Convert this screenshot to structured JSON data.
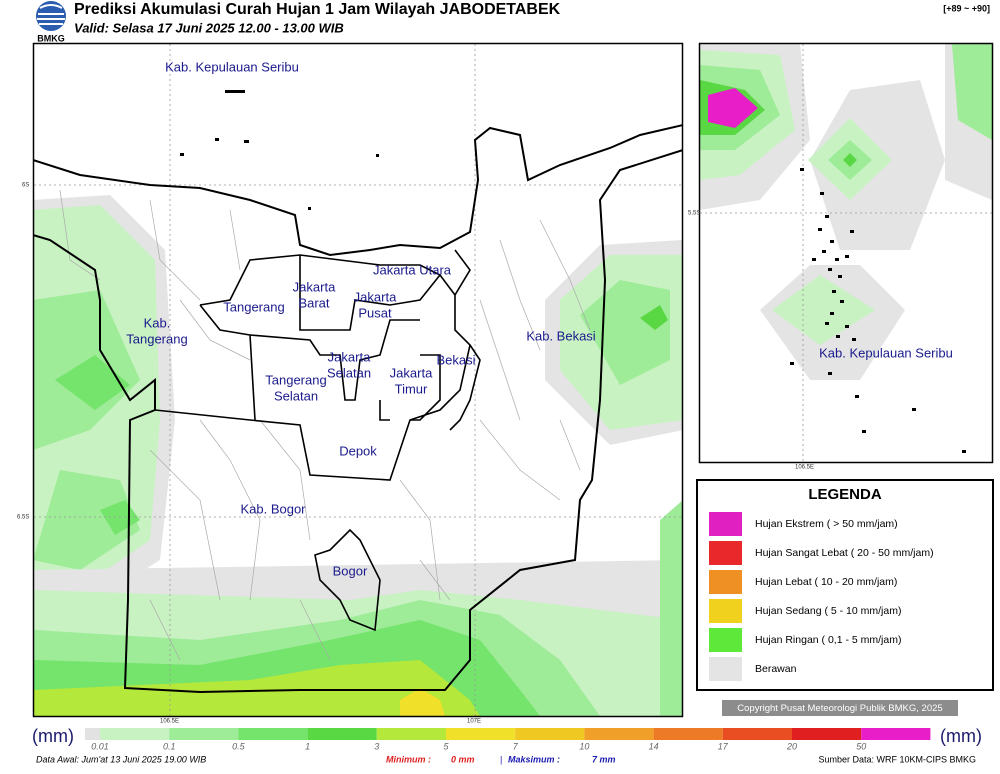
{
  "header": {
    "logo": "BMKG",
    "title": "Prediksi Akumulasi Curah Hujan 1 Jam Wilayah JABODETABEK",
    "valid": "Valid: Selasa 17 Juni 2025 12.00 - 13.00 WIB",
    "code": "[+89 ~ +90]"
  },
  "main_map": {
    "labels": [
      [
        "Kab. Kepulauan Seribu"
      ],
      [
        "Jakarta Utara"
      ],
      [
        "Jakarta",
        "Barat"
      ],
      [
        "Jakarta",
        "Pusat"
      ],
      [
        "Tangerang"
      ],
      [
        "Kab.",
        "Tangerang"
      ],
      [
        "Kab. Bekasi"
      ],
      [
        "Jakarta",
        "Selatan"
      ],
      [
        "Jakarta",
        "Timur"
      ],
      [
        "Bekasi"
      ],
      [
        "Tangerang",
        "Selatan"
      ],
      [
        "Depok"
      ],
      [
        "Kab. Bogor"
      ],
      [
        "Bogor"
      ]
    ],
    "axis_labels": [
      "6S",
      "6.5S",
      "106.5E",
      "107E"
    ]
  },
  "inset_map": {
    "labels": [
      "Kab. Kepulauan Seribu"
    ],
    "axis_labels": [
      "5.5S",
      "106.5E"
    ]
  },
  "legend": {
    "title": "LEGENDA",
    "items": [
      {
        "label": "Hujan Ekstrem ( > 50 mm/jam)",
        "color": "#e020c0"
      },
      {
        "label": "Hujan Sangat Lebat ( 20 - 50 mm/jam)",
        "color": "#e8282a"
      },
      {
        "label": "Hujan Lebat ( 10 - 20 mm/jam)",
        "color": "#ee9024"
      },
      {
        "label": "Hujan Sedang ( 5 - 10 mm/jam)",
        "color": "#f0d21e"
      },
      {
        "label": "Hujan Ringan ( 0,1 - 5 mm/jam)",
        "color": "#5ee83a"
      },
      {
        "label": "Berawan",
        "color": "#e4e4e4"
      }
    ]
  },
  "copyright": "Copyright Pusat Meteorologi Publik BMKG, 2025",
  "colorbar": {
    "unit": "(mm)",
    "ticks": [
      "0.01",
      "0.1",
      "0.5",
      "1",
      "3",
      "5",
      "7",
      "10",
      "14",
      "17",
      "20",
      "50"
    ],
    "colors": [
      "#e2e2e2",
      "#c8f2c2",
      "#9eeb98",
      "#74e46c",
      "#5ad844",
      "#b4e83a",
      "#f0e02a",
      "#f0c822",
      "#f0a028",
      "#ec7a26",
      "#e84e22",
      "#e02020",
      "#e81ec8"
    ]
  },
  "footer": {
    "data_awal": "Data Awal: Jum'at 13 Juni 2025 19.00 WIB",
    "min_label": "Minimum :",
    "min_value": "0 mm",
    "separator": "|",
    "max_label": "Maksimum :",
    "max_value": "7 mm",
    "source": "Sumber Data: WRF 10KM-CIPS BMKG"
  }
}
